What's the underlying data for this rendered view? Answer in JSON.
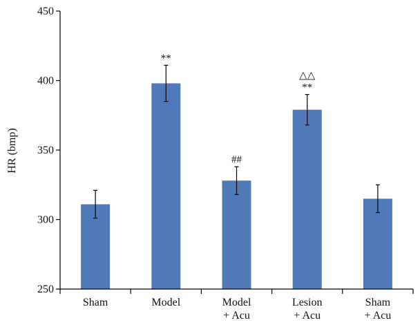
{
  "chart_data": {
    "type": "bar",
    "title": "",
    "xlabel": "",
    "ylabel": "HR (bmp)",
    "ylim": [
      250,
      450
    ],
    "yticks": [
      250,
      300,
      350,
      400,
      450
    ],
    "grid": false,
    "bar_color": "#4f7ab7",
    "categories": [
      [
        "Sham"
      ],
      [
        "Model"
      ],
      [
        "Model",
        "+ Acu"
      ],
      [
        "Lesion",
        "+ Acu"
      ],
      [
        "Sham",
        "+ Acu"
      ]
    ],
    "values": [
      311,
      398,
      328,
      379,
      315
    ],
    "errors": [
      10,
      13,
      10,
      11,
      10
    ],
    "annotations": [
      [],
      [
        "**"
      ],
      [
        "##"
      ],
      [
        "△△",
        "**"
      ],
      []
    ]
  }
}
